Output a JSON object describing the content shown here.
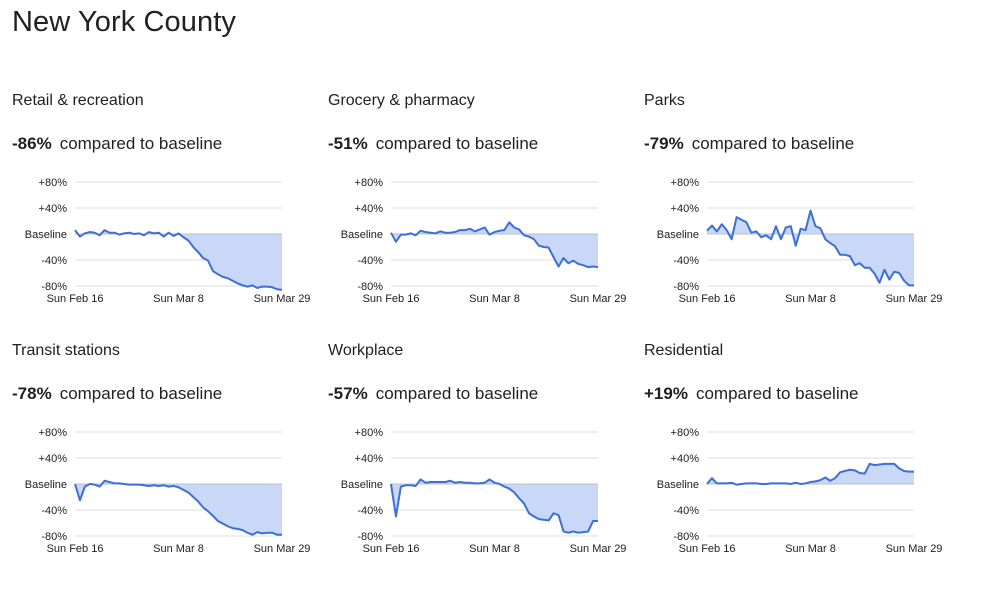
{
  "page_title": "New York County",
  "comparison_text": "compared to baseline",
  "colors": {
    "line": "#3c6fd8",
    "fill": "#c9d8f7",
    "grid": "#dadce0",
    "text": "#202124"
  },
  "chart_data": [
    {
      "type": "area",
      "title": "Retail & recreation",
      "headline": "-86%",
      "y_tick_labels": [
        "+80%",
        "+40%",
        "Baseline",
        "-40%",
        "-80%"
      ],
      "y_ticks": [
        80,
        40,
        0,
        -40,
        -80
      ],
      "ylim": [
        -80,
        80
      ],
      "x_tick_labels": [
        "Sun Feb 16",
        "Sun Mar 8",
        "Sun Mar 29"
      ],
      "x_ticks": [
        0,
        21,
        42
      ],
      "x": [
        0,
        1,
        2,
        3,
        4,
        5,
        6,
        7,
        8,
        9,
        10,
        11,
        12,
        13,
        14,
        15,
        16,
        17,
        18,
        19,
        20,
        21,
        22,
        23,
        24,
        25,
        26,
        27,
        28,
        29,
        30,
        31,
        32,
        33,
        34,
        35,
        36,
        37,
        38,
        39,
        40,
        41,
        42
      ],
      "values": [
        6,
        -4,
        1,
        3,
        2,
        -2,
        6,
        2,
        2,
        -1,
        1,
        2,
        0,
        1,
        -2,
        3,
        1,
        2,
        -4,
        2,
        -3,
        1,
        -5,
        -10,
        -20,
        -28,
        -37,
        -41,
        -57,
        -62,
        -66,
        -68,
        -72,
        -76,
        -79,
        -81,
        -79,
        -83,
        -81,
        -81,
        -82,
        -85,
        -86
      ]
    },
    {
      "type": "area",
      "title": "Grocery & pharmacy",
      "headline": "-51%",
      "y_tick_labels": [
        "+80%",
        "+40%",
        "Baseline",
        "-40%",
        "-80%"
      ],
      "y_ticks": [
        80,
        40,
        0,
        -40,
        -80
      ],
      "ylim": [
        -80,
        80
      ],
      "x_tick_labels": [
        "Sun Feb 16",
        "Sun Mar 8",
        "Sun Mar 29"
      ],
      "x_ticks": [
        0,
        21,
        42
      ],
      "x": [
        0,
        1,
        2,
        3,
        4,
        5,
        6,
        7,
        8,
        9,
        10,
        11,
        12,
        13,
        14,
        15,
        16,
        17,
        18,
        19,
        20,
        21,
        22,
        23,
        24,
        25,
        26,
        27,
        28,
        29,
        30,
        31,
        32,
        33,
        34,
        35,
        36,
        37,
        38,
        39,
        40,
        41,
        42
      ],
      "values": [
        2,
        -12,
        -1,
        -1,
        1,
        -2,
        5,
        3,
        2,
        1,
        4,
        2,
        2,
        3,
        6,
        6,
        8,
        4,
        7,
        10,
        -1,
        3,
        5,
        6,
        18,
        10,
        7,
        -2,
        -4,
        -8,
        -18,
        -20,
        -21,
        -36,
        -50,
        -37,
        -45,
        -41,
        -46,
        -48,
        -51,
        -50,
        -51
      ]
    },
    {
      "type": "area",
      "title": "Parks",
      "headline": "-79%",
      "y_tick_labels": [
        "+80%",
        "+40%",
        "Baseline",
        "-40%",
        "-80%"
      ],
      "y_ticks": [
        80,
        40,
        0,
        -40,
        -80
      ],
      "ylim": [
        -80,
        80
      ],
      "x_tick_labels": [
        "Sun Feb 16",
        "Sun Mar 8",
        "Sun Mar 29"
      ],
      "x_ticks": [
        0,
        21,
        42
      ],
      "x": [
        0,
        1,
        2,
        3,
        4,
        5,
        6,
        7,
        8,
        9,
        10,
        11,
        12,
        13,
        14,
        15,
        16,
        17,
        18,
        19,
        20,
        21,
        22,
        23,
        24,
        25,
        26,
        27,
        28,
        29,
        30,
        31,
        32,
        33,
        34,
        35,
        36,
        37,
        38,
        39,
        40,
        41,
        42
      ],
      "values": [
        5,
        13,
        4,
        15,
        6,
        -8,
        26,
        22,
        18,
        2,
        4,
        -5,
        -2,
        -8,
        12,
        -8,
        10,
        12,
        -18,
        8,
        6,
        36,
        12,
        9,
        -8,
        -14,
        -19,
        -32,
        -32,
        -34,
        -48,
        -45,
        -52,
        -52,
        -61,
        -75,
        -55,
        -70,
        -58,
        -60,
        -72,
        -79,
        -79
      ]
    },
    {
      "type": "area",
      "title": "Transit stations",
      "headline": "-78%",
      "y_tick_labels": [
        "+80%",
        "+40%",
        "Baseline",
        "-40%",
        "-80%"
      ],
      "y_ticks": [
        80,
        40,
        0,
        -40,
        -80
      ],
      "ylim": [
        -80,
        80
      ],
      "x_tick_labels": [
        "Sun Feb 16",
        "Sun Mar 8",
        "Sun Mar 29"
      ],
      "x_ticks": [
        0,
        21,
        42
      ],
      "x": [
        0,
        1,
        2,
        3,
        4,
        5,
        6,
        7,
        8,
        9,
        10,
        11,
        12,
        13,
        14,
        15,
        16,
        17,
        18,
        19,
        20,
        21,
        22,
        23,
        24,
        25,
        26,
        27,
        28,
        29,
        30,
        31,
        32,
        33,
        34,
        35,
        36,
        37,
        38,
        39,
        40,
        41,
        42
      ],
      "values": [
        0,
        -25,
        -4,
        0,
        -1,
        -4,
        5,
        3,
        1,
        1,
        0,
        -1,
        -1,
        -1,
        -2,
        -3,
        -2,
        -3,
        -2,
        -4,
        -3,
        -5,
        -9,
        -13,
        -20,
        -27,
        -36,
        -42,
        -49,
        -57,
        -61,
        -65,
        -68,
        -69,
        -71,
        -75,
        -78,
        -74,
        -76,
        -75,
        -75,
        -78,
        -78
      ]
    },
    {
      "type": "area",
      "title": "Workplace",
      "headline": "-57%",
      "y_tick_labels": [
        "+80%",
        "+40%",
        "Baseline",
        "-40%",
        "-80%"
      ],
      "y_ticks": [
        80,
        40,
        0,
        -40,
        -80
      ],
      "ylim": [
        -80,
        80
      ],
      "x_tick_labels": [
        "Sun Feb 16",
        "Sun Mar 8",
        "Sun Mar 29"
      ],
      "x_ticks": [
        0,
        21,
        42
      ],
      "x": [
        0,
        1,
        2,
        3,
        4,
        5,
        6,
        7,
        8,
        9,
        10,
        11,
        12,
        13,
        14,
        15,
        16,
        17,
        18,
        19,
        20,
        21,
        22,
        23,
        24,
        25,
        26,
        27,
        28,
        29,
        30,
        31,
        32,
        33,
        34,
        35,
        36,
        37,
        38,
        39,
        40,
        41,
        42
      ],
      "values": [
        0,
        -50,
        -4,
        -2,
        -2,
        -3,
        7,
        2,
        3,
        3,
        3,
        3,
        5,
        2,
        3,
        2,
        2,
        1,
        1,
        2,
        7,
        2,
        0,
        -4,
        -7,
        -13,
        -22,
        -30,
        -45,
        -50,
        -54,
        -55,
        -56,
        -45,
        -48,
        -73,
        -75,
        -73,
        -75,
        -74,
        -73,
        -57,
        -57
      ]
    },
    {
      "type": "area",
      "title": "Residential",
      "headline": "+19%",
      "y_tick_labels": [
        "+80%",
        "+40%",
        "Baseline",
        "-40%",
        "-80%"
      ],
      "y_ticks": [
        80,
        40,
        0,
        -40,
        -80
      ],
      "ylim": [
        -80,
        80
      ],
      "x_tick_labels": [
        "Sun Feb 16",
        "Sun Mar 8",
        "Sun Mar 29"
      ],
      "x_ticks": [
        0,
        21,
        42
      ],
      "x": [
        0,
        1,
        2,
        3,
        4,
        5,
        6,
        7,
        8,
        9,
        10,
        11,
        12,
        13,
        14,
        15,
        16,
        17,
        18,
        19,
        20,
        21,
        22,
        23,
        24,
        25,
        26,
        27,
        28,
        29,
        30,
        31,
        32,
        33,
        34,
        35,
        36,
        37,
        38,
        39,
        40,
        41,
        42
      ],
      "values": [
        0,
        9,
        1,
        1,
        1,
        2,
        -1,
        0,
        1,
        1,
        1,
        0,
        0,
        1,
        1,
        1,
        1,
        0,
        2,
        0,
        1,
        3,
        4,
        6,
        10,
        5,
        9,
        18,
        20,
        22,
        21,
        17,
        16,
        31,
        29,
        30,
        31,
        31,
        31,
        24,
        20,
        19,
        19
      ]
    }
  ]
}
